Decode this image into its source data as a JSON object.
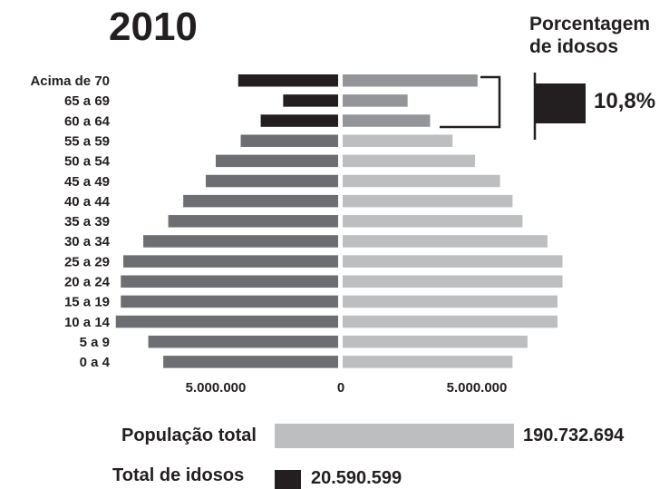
{
  "colors": {
    "male_elderly": "#231f20",
    "male": "#6d6e71",
    "female_elderly": "#939598",
    "female": "#bcbec0",
    "total_population_bar": "#bcbec0",
    "total_elderly_bar": "#231f20",
    "pct_bar": "#231f20",
    "text": "#231f20"
  },
  "chart_data": {
    "type": "bar",
    "title": "2010",
    "categories": [
      "0 a 4",
      "5 a 9",
      "10 a 14",
      "15 a 19",
      "20 a 24",
      "25 a 29",
      "30 a 34",
      "35 a 39",
      "40 a 44",
      "45 a 49",
      "50 a 54",
      "55 a 59",
      "60 a 64",
      "65 a 69",
      "Acima de 70"
    ],
    "series": [
      {
        "values": [
          7000000,
          7600000,
          8900000,
          8700000,
          8700000,
          8600000,
          7800000,
          6800000,
          6200000,
          5300000,
          4900000,
          3900000,
          3100000,
          2200000,
          4000000
        ]
      },
      {
        "values": [
          6800000,
          7400000,
          8600000,
          8600000,
          8800000,
          8800000,
          8200000,
          7200000,
          6800000,
          6300000,
          5300000,
          4400000,
          3500000,
          2600000,
          5400000
        ]
      }
    ],
    "x_tick_labels": [
      "5.000.000",
      "0",
      "5.000.000"
    ],
    "xlim": [
      -9000000,
      9000000
    ],
    "grid": false,
    "legend": "none"
  },
  "elderly_share": {
    "heading_line1": "Porcentagem",
    "heading_line2": "de idosos",
    "value_text": "10,8%",
    "value": 10.8
  },
  "totals": {
    "population_label": "População total",
    "population_value": "190.732.694",
    "population": 190732694,
    "elderly_label": "Total de idosos",
    "elderly_value": "20.590.599",
    "elderly": 20590599
  }
}
